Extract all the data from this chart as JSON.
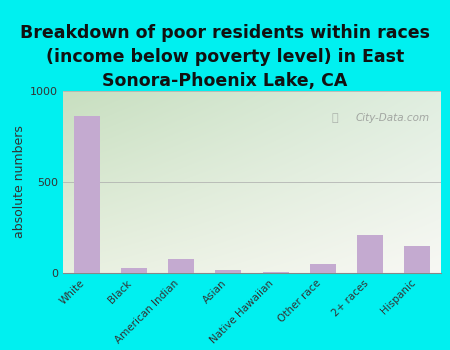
{
  "categories": [
    "White",
    "Black",
    "American Indian",
    "Asian",
    "Native Hawaiian",
    "Other race",
    "2+ races",
    "Hispanic"
  ],
  "values": [
    860,
    28,
    75,
    18,
    5,
    50,
    210,
    150
  ],
  "bar_color": "#c4aad0",
  "title": "Breakdown of poor residents within races\n(income below poverty level) in East\nSonora-Phoenix Lake, CA",
  "ylabel": "absolute numbers",
  "ylim": [
    0,
    1000
  ],
  "yticks": [
    0,
    500,
    1000
  ],
  "background_color": "#00f0f0",
  "plot_bg_color_topleft": "#c8dfc0",
  "plot_bg_color_topright": "#e8eee8",
  "plot_bg_color_bottomleft": "#e8f0e0",
  "plot_bg_color_bottomright": "#f8f8f4",
  "watermark": "City-Data.com",
  "title_fontsize": 12.5,
  "ylabel_fontsize": 9
}
